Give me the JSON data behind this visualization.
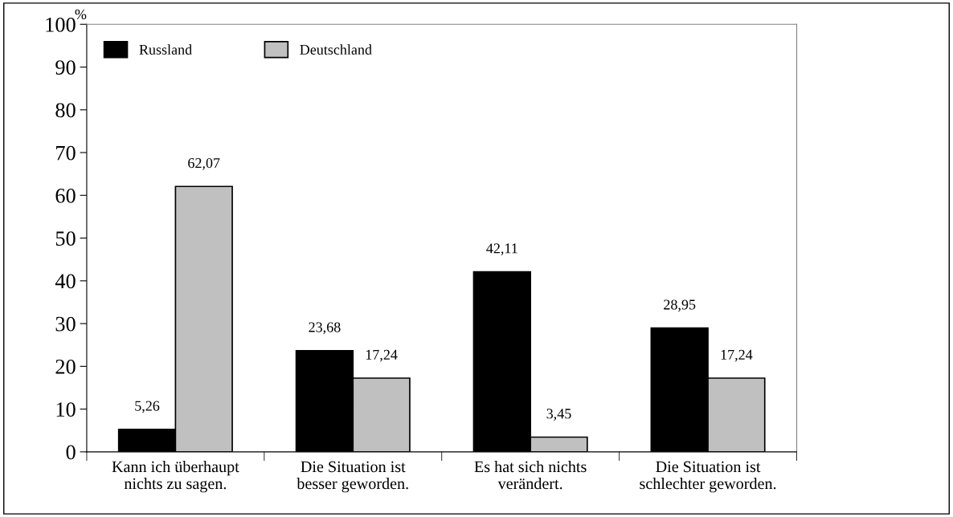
{
  "chart_data": {
    "type": "bar",
    "ylabel": "%",
    "categories": [
      "Kann ich überhaupt\nnichts zu sagen.",
      "Die Situation ist\nbesser geworden.",
      "Es hat sich nichts\nverändert.",
      "Die Situation ist\nschlechter geworden."
    ],
    "series": [
      {
        "name": "Russland",
        "color": "#000000",
        "values": [
          5.26,
          23.68,
          42.11,
          28.95
        ],
        "value_labels": [
          "5,26",
          "23,68",
          "42,11",
          "28,95"
        ]
      },
      {
        "name": "Deutschland",
        "color": "#c0c0c0",
        "values": [
          62.07,
          17.24,
          3.45,
          17.24
        ],
        "value_labels": [
          "62,07",
          "17,24",
          "3,45",
          "17,24"
        ]
      }
    ],
    "ylim": [
      0,
      100
    ],
    "yticks": [
      0,
      10,
      20,
      30,
      40,
      50,
      60,
      70,
      80,
      90,
      100
    ],
    "grid": false,
    "legend": "top left"
  }
}
